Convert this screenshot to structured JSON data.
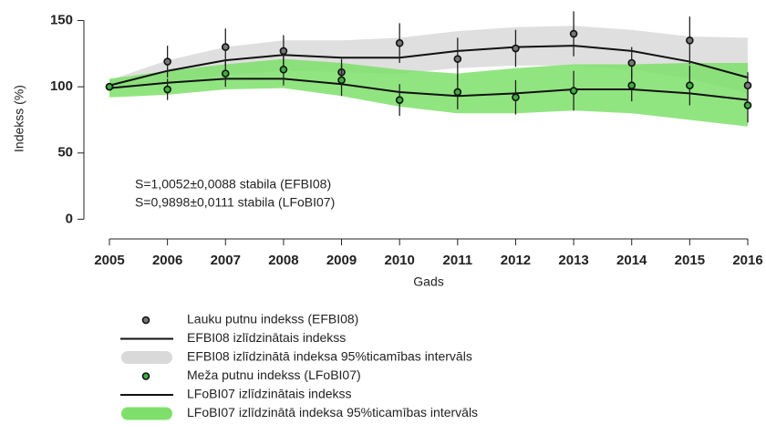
{
  "chart_data": {
    "type": "line",
    "x": [
      2005,
      2006,
      2007,
      2008,
      2009,
      2010,
      2011,
      2012,
      2013,
      2014,
      2015,
      2016
    ],
    "xlim": [
      2005,
      2016
    ],
    "xticks": [
      2005,
      2006,
      2007,
      2008,
      2009,
      2010,
      2011,
      2012,
      2013,
      2014,
      2015,
      2016
    ],
    "ylim": [
      -8,
      160
    ],
    "yticks": [
      0,
      50,
      100,
      150
    ],
    "xlabel": "Gads",
    "ylabel": "Indekss (%)",
    "annotations": [
      {
        "text": "S=1,0052±0,0088 stabila (EFBI08)",
        "color": "#222222"
      },
      {
        "text": "S=0,9898±0,0111 stabila (LFoBI07)",
        "color": "#2e8b3a"
      }
    ],
    "series": [
      {
        "name": "EFBI08 izlīdzinātā indeksa 95%ticamības intervāls",
        "kind": "band",
        "color": "#d9d9d9",
        "lower": [
          97,
          103,
          109,
          112,
          111,
          110,
          114,
          116,
          116,
          113,
          106,
          95
        ],
        "upper": [
          105,
          120,
          130,
          135,
          135,
          137,
          142,
          145,
          146,
          143,
          138,
          137
        ]
      },
      {
        "name": "LFoBI07 izlīdzinātā indeksa 95%ticamības intervāls",
        "kind": "band",
        "color": "#7ee06a",
        "lower": [
          92,
          94,
          98,
          99,
          93,
          85,
          80,
          80,
          82,
          80,
          75,
          70
        ],
        "upper": [
          106,
          112,
          117,
          121,
          118,
          113,
          110,
          114,
          117,
          117,
          118,
          118
        ]
      },
      {
        "name": "EFBI08 izlīdzinātais indekss",
        "kind": "line",
        "color": "#111111",
        "values": [
          101,
          112,
          120,
          124,
          122,
          122,
          127,
          130,
          131,
          127,
          119,
          107
        ]
      },
      {
        "name": "LFoBI07 izlīdzinātais indekss",
        "kind": "line",
        "color": "#111111",
        "values": [
          99,
          103,
          106,
          106,
          102,
          96,
          93,
          95,
          98,
          98,
          95,
          90
        ]
      },
      {
        "name": "Lauku putnu indekss (EFBI08)",
        "kind": "points",
        "color": "#777777",
        "values": [
          100,
          119,
          130,
          127,
          111,
          133,
          121,
          129,
          140,
          118,
          135,
          101
        ],
        "errors": [
          0,
          12,
          14,
          12,
          10,
          15,
          16,
          14,
          17,
          12,
          18,
          10
        ]
      },
      {
        "name": "Meža putnu indekss (LFoBI07)",
        "kind": "points",
        "color": "#3fae3f",
        "values": [
          100,
          98,
          110,
          113,
          105,
          90,
          96,
          92,
          97,
          101,
          101,
          86
        ],
        "errors": [
          0,
          8,
          10,
          12,
          12,
          12,
          13,
          13,
          15,
          12,
          15,
          13
        ]
      }
    ],
    "legend_order": [
      4,
      2,
      0,
      5,
      3,
      1
    ]
  }
}
